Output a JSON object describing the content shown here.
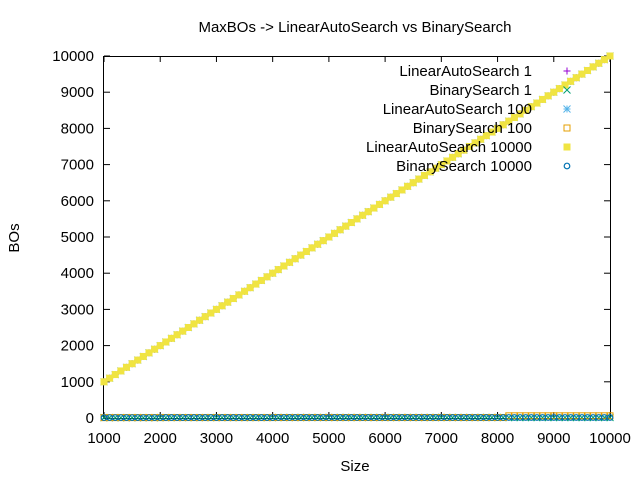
{
  "chart_data": {
    "type": "scatter",
    "title": "MaxBOs -> LinearAutoSearch vs BinarySearch",
    "xlabel": "Size",
    "ylabel": "BOs",
    "xlim": [
      1000,
      10000
    ],
    "ylim": [
      0,
      10000
    ],
    "xticks": [
      "1000",
      "2000",
      "3000",
      "4000",
      "5000",
      "6000",
      "7000",
      "8000",
      "9000",
      "10000"
    ],
    "yticks": [
      "0",
      "1000",
      "2000",
      "3000",
      "4000",
      "5000",
      "6000",
      "7000",
      "8000",
      "9000",
      "10000"
    ],
    "grid": false,
    "legend_position": "top-right",
    "x_range": {
      "start": 1000,
      "end": 10000,
      "step": 100
    },
    "series": [
      {
        "name": "LinearAutoSearch 1",
        "color": "#9400d3",
        "marker": "plus",
        "values": "y = x"
      },
      {
        "name": "BinarySearch 1",
        "color": "#009e73",
        "marker": "cross",
        "values": "y ≈ 10–14 (log2 x)"
      },
      {
        "name": "LinearAutoSearch 100",
        "color": "#56b4e9",
        "marker": "asterisk",
        "values": "y = x"
      },
      {
        "name": "BinarySearch 100",
        "color": "#e69f00",
        "marker": "open-square",
        "values": "y ≈ 10–14; rises to ≈ 60 for x ≥ 8200"
      },
      {
        "name": "LinearAutoSearch 10000",
        "color": "#f0e442",
        "marker": "filled-square",
        "values": "y = x"
      },
      {
        "name": "BinarySearch 10000",
        "color": "#0072b2",
        "marker": "open-circle",
        "values": "y ≈ 10–14 (log2 x)"
      }
    ]
  }
}
